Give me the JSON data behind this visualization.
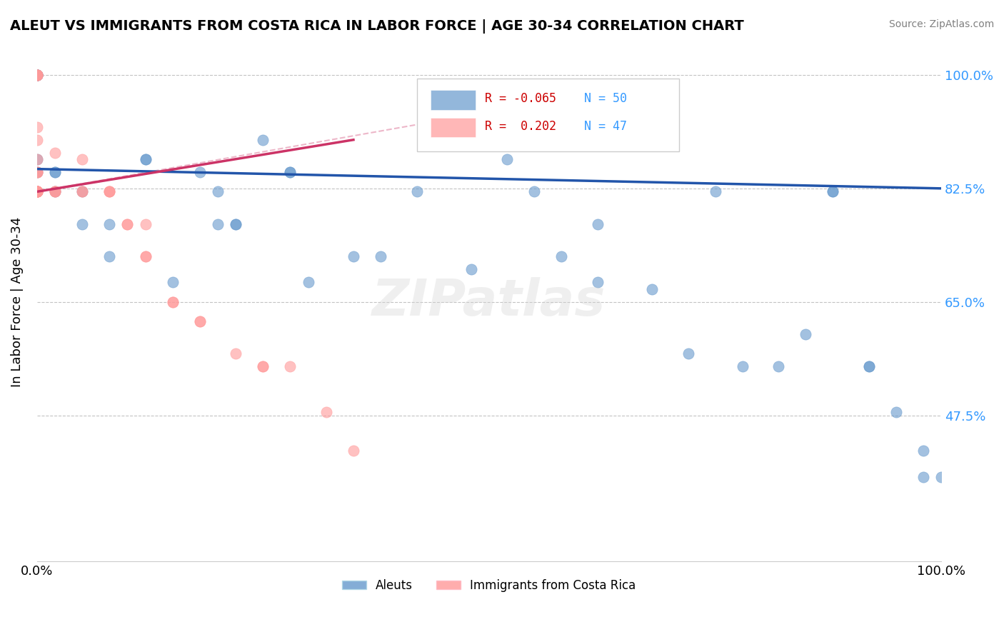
{
  "title": "ALEUT VS IMMIGRANTS FROM COSTA RICA IN LABOR FORCE | AGE 30-34 CORRELATION CHART",
  "source": "Source: ZipAtlas.com",
  "xlabel": "",
  "ylabel": "In Labor Force | Age 30-34",
  "xlim": [
    0.0,
    1.0
  ],
  "ylim": [
    0.25,
    1.05
  ],
  "yticks": [
    0.475,
    0.5,
    0.65,
    0.825,
    1.0
  ],
  "ytick_labels": [
    "47.5%",
    "",
    "65.0%",
    "82.5%",
    "100.0%"
  ],
  "xtick_labels": [
    "0.0%",
    "100.0%"
  ],
  "legend_blue_R": "-0.065",
  "legend_blue_N": "50",
  "legend_pink_R": "0.202",
  "legend_pink_N": "47",
  "blue_color": "#6699CC",
  "pink_color": "#FF9999",
  "blue_line_color": "#2255AA",
  "pink_line_color": "#CC3366",
  "watermark": "ZIPatlas",
  "blue_points_x": [
    0.0,
    0.0,
    0.0,
    0.0,
    0.0,
    0.0,
    0.0,
    0.0,
    0.02,
    0.02,
    0.02,
    0.05,
    0.05,
    0.08,
    0.08,
    0.12,
    0.12,
    0.15,
    0.18,
    0.2,
    0.2,
    0.22,
    0.22,
    0.25,
    0.28,
    0.28,
    0.3,
    0.35,
    0.38,
    0.42,
    0.48,
    0.52,
    0.55,
    0.58,
    0.62,
    0.62,
    0.68,
    0.72,
    0.75,
    0.78,
    0.82,
    0.85,
    0.88,
    0.88,
    0.92,
    0.92,
    0.95,
    0.98,
    0.98,
    1.0
  ],
  "blue_points_y": [
    1.0,
    1.0,
    1.0,
    1.0,
    1.0,
    1.0,
    0.87,
    0.85,
    0.85,
    0.85,
    0.82,
    0.82,
    0.77,
    0.77,
    0.72,
    0.87,
    0.87,
    0.68,
    0.85,
    0.77,
    0.82,
    0.77,
    0.77,
    0.9,
    0.85,
    0.85,
    0.68,
    0.72,
    0.72,
    0.82,
    0.7,
    0.87,
    0.82,
    0.72,
    0.68,
    0.77,
    0.67,
    0.57,
    0.82,
    0.55,
    0.55,
    0.6,
    0.82,
    0.82,
    0.55,
    0.55,
    0.48,
    0.42,
    0.38,
    0.38
  ],
  "pink_points_x": [
    0.0,
    0.0,
    0.0,
    0.0,
    0.0,
    0.0,
    0.0,
    0.0,
    0.0,
    0.0,
    0.0,
    0.0,
    0.0,
    0.0,
    0.0,
    0.0,
    0.0,
    0.0,
    0.0,
    0.0,
    0.0,
    0.0,
    0.02,
    0.02,
    0.02,
    0.02,
    0.05,
    0.05,
    0.05,
    0.08,
    0.08,
    0.08,
    0.1,
    0.1,
    0.12,
    0.12,
    0.12,
    0.15,
    0.15,
    0.18,
    0.18,
    0.22,
    0.25,
    0.25,
    0.28,
    0.32,
    0.35
  ],
  "pink_points_y": [
    1.0,
    1.0,
    1.0,
    1.0,
    1.0,
    0.92,
    0.9,
    0.87,
    0.85,
    0.85,
    0.85,
    0.82,
    0.82,
    0.82,
    0.82,
    0.82,
    0.82,
    0.82,
    0.82,
    0.82,
    0.82,
    0.82,
    0.88,
    0.82,
    0.82,
    0.82,
    0.87,
    0.82,
    0.82,
    0.82,
    0.82,
    0.82,
    0.77,
    0.77,
    0.77,
    0.72,
    0.72,
    0.65,
    0.65,
    0.62,
    0.62,
    0.57,
    0.55,
    0.55,
    0.55,
    0.48,
    0.42
  ],
  "blue_trend_x": [
    0.0,
    1.0
  ],
  "blue_trend_y_start": 0.855,
  "blue_trend_y_end": 0.825,
  "pink_trend_x": [
    0.0,
    0.35
  ],
  "pink_trend_y_start": 0.82,
  "pink_trend_y_end": 0.9
}
